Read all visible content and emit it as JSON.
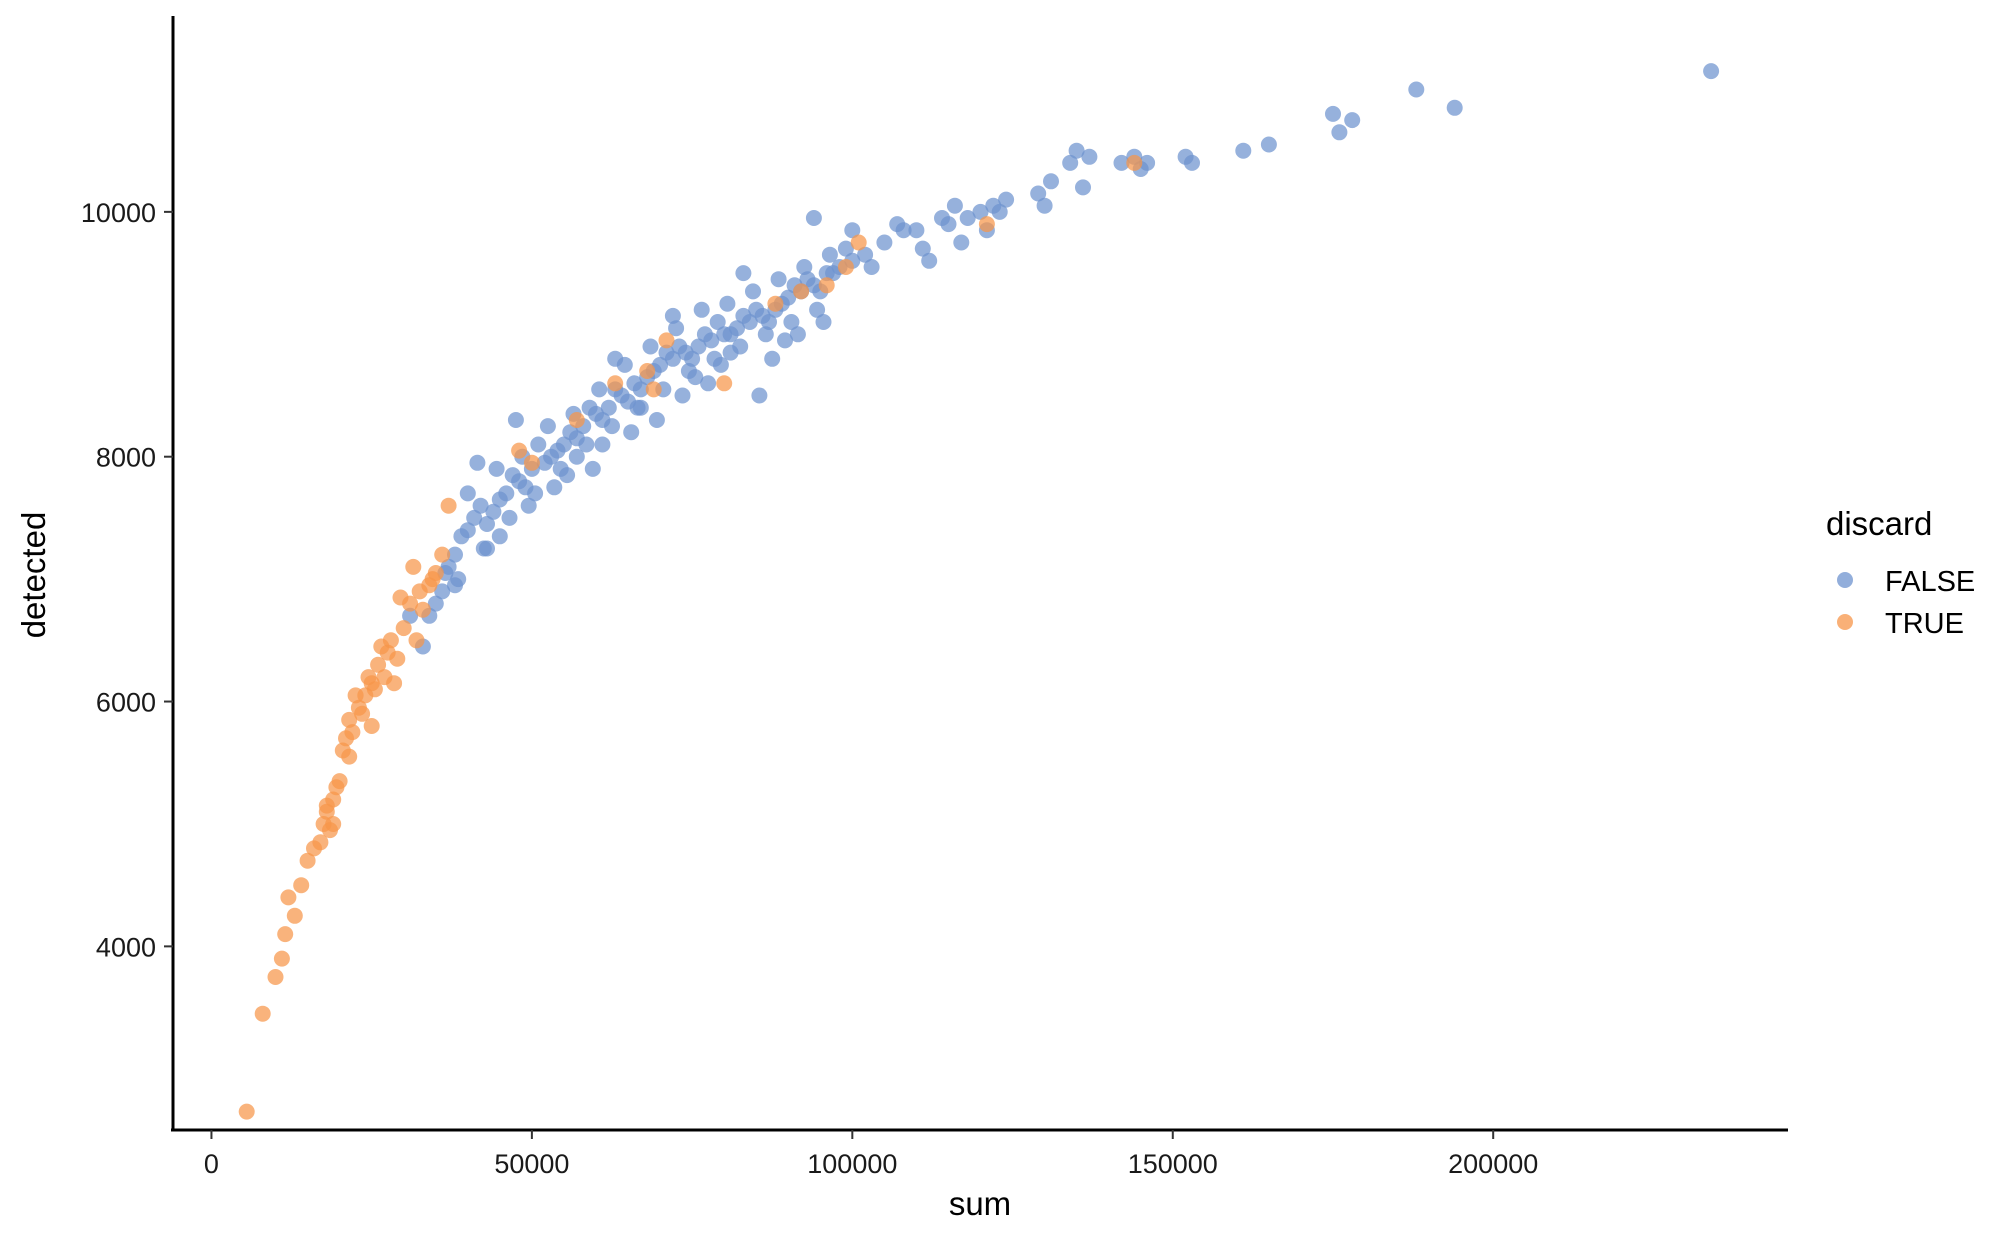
{
  "chart_data": {
    "type": "scatter",
    "xlabel": "sum",
    "ylabel": "detected",
    "xlim": [
      -6000,
      246000
    ],
    "ylim": [
      2500,
      11600
    ],
    "x_ticks": [
      0,
      50000,
      100000,
      150000,
      200000
    ],
    "y_ticks": [
      4000,
      6000,
      8000,
      10000
    ],
    "grid": false,
    "legend": {
      "title": "discard",
      "placement": "right",
      "entries": [
        {
          "label": "FALSE",
          "color": "#6e93cf"
        },
        {
          "label": "TRUE",
          "color": "#f7964a"
        }
      ]
    },
    "series": [
      {
        "name": "FALSE",
        "color": "#6e93cf",
        "points": [
          [
            36000,
            6900
          ],
          [
            38000,
            7200
          ],
          [
            40000,
            7400
          ],
          [
            42000,
            7600
          ],
          [
            44000,
            7550
          ],
          [
            46000,
            7700
          ],
          [
            48000,
            7800
          ],
          [
            50000,
            7900
          ],
          [
            52000,
            7950
          ],
          [
            54000,
            8050
          ],
          [
            56000,
            8200
          ],
          [
            58000,
            8250
          ],
          [
            60000,
            8350
          ],
          [
            62000,
            8400
          ],
          [
            64000,
            8500
          ],
          [
            66000,
            8600
          ],
          [
            68000,
            8650
          ],
          [
            70000,
            8750
          ],
          [
            72000,
            8800
          ],
          [
            74000,
            8850
          ],
          [
            76000,
            8900
          ],
          [
            78000,
            8950
          ],
          [
            80000,
            9000
          ],
          [
            82000,
            9050
          ],
          [
            84000,
            9100
          ],
          [
            86000,
            9150
          ],
          [
            88000,
            9200
          ],
          [
            90000,
            9300
          ],
          [
            92000,
            9350
          ],
          [
            94000,
            9400
          ],
          [
            96000,
            9500
          ],
          [
            98000,
            9550
          ],
          [
            100000,
            9600
          ],
          [
            102000,
            9650
          ],
          [
            37000,
            7100
          ],
          [
            41000,
            7500
          ],
          [
            45000,
            7650
          ],
          [
            49000,
            7750
          ],
          [
            53000,
            8000
          ],
          [
            57000,
            8150
          ],
          [
            61000,
            8300
          ],
          [
            65000,
            8450
          ],
          [
            69000,
            8700
          ],
          [
            73000,
            8900
          ],
          [
            77000,
            9000
          ],
          [
            81000,
            9000
          ],
          [
            85000,
            9200
          ],
          [
            89000,
            9250
          ],
          [
            93000,
            9450
          ],
          [
            97000,
            9500
          ],
          [
            39000,
            7350
          ],
          [
            43000,
            7450
          ],
          [
            47000,
            7850
          ],
          [
            51000,
            8100
          ],
          [
            55000,
            8100
          ],
          [
            59000,
            8400
          ],
          [
            63000,
            8550
          ],
          [
            67000,
            8550
          ],
          [
            71000,
            8850
          ],
          [
            75000,
            8800
          ],
          [
            79000,
            9100
          ],
          [
            83000,
            9150
          ],
          [
            87000,
            9100
          ],
          [
            91000,
            9400
          ],
          [
            95000,
            9350
          ],
          [
            99000,
            9700
          ],
          [
            35000,
            6800
          ],
          [
            38500,
            7000
          ],
          [
            42500,
            7250
          ],
          [
            46500,
            7500
          ],
          [
            50500,
            7700
          ],
          [
            54500,
            7900
          ],
          [
            58500,
            8100
          ],
          [
            62500,
            8250
          ],
          [
            66500,
            8400
          ],
          [
            70500,
            8550
          ],
          [
            74500,
            8700
          ],
          [
            78500,
            8800
          ],
          [
            82500,
            8900
          ],
          [
            86500,
            9000
          ],
          [
            90500,
            9100
          ],
          [
            94500,
            9200
          ],
          [
            40000,
            7700
          ],
          [
            44500,
            7900
          ],
          [
            48500,
            8000
          ],
          [
            52500,
            8250
          ],
          [
            56500,
            8350
          ],
          [
            60500,
            8550
          ],
          [
            64500,
            8750
          ],
          [
            68500,
            8900
          ],
          [
            72500,
            9050
          ],
          [
            76500,
            9200
          ],
          [
            80500,
            9250
          ],
          [
            84500,
            9350
          ],
          [
            88500,
            9450
          ],
          [
            92500,
            9550
          ],
          [
            96500,
            9650
          ],
          [
            33000,
            6450
          ],
          [
            34000,
            6700
          ],
          [
            41500,
            7950
          ],
          [
            47500,
            8300
          ],
          [
            63000,
            8800
          ],
          [
            72000,
            9150
          ],
          [
            83000,
            9500
          ],
          [
            94000,
            9950
          ],
          [
            57000,
            8000
          ],
          [
            61000,
            8100
          ],
          [
            67000,
            8400
          ],
          [
            75500,
            8650
          ],
          [
            79500,
            8750
          ],
          [
            81000,
            8850
          ],
          [
            89500,
            8950
          ],
          [
            85500,
            8500
          ],
          [
            53500,
            7750
          ],
          [
            59500,
            7900
          ],
          [
            65500,
            8200
          ],
          [
            69500,
            8300
          ],
          [
            73500,
            8500
          ],
          [
            77500,
            8600
          ],
          [
            87500,
            8800
          ],
          [
            91500,
            9000
          ],
          [
            95500,
            9100
          ],
          [
            45000,
            7350
          ],
          [
            43000,
            7250
          ],
          [
            49500,
            7600
          ],
          [
            55500,
            7850
          ],
          [
            38000,
            6950
          ],
          [
            36500,
            7050
          ],
          [
            31000,
            6700
          ],
          [
            105000,
            9750
          ],
          [
            107000,
            9900
          ],
          [
            110000,
            9850
          ],
          [
            112000,
            9600
          ],
          [
            114000,
            9950
          ],
          [
            116000,
            10050
          ],
          [
            118000,
            9950
          ],
          [
            120000,
            10000
          ],
          [
            122000,
            10050
          ],
          [
            124000,
            10100
          ],
          [
            129000,
            10150
          ],
          [
            130000,
            10050
          ],
          [
            131000,
            10250
          ],
          [
            134000,
            10400
          ],
          [
            136000,
            10200
          ],
          [
            137000,
            10450
          ],
          [
            142000,
            10400
          ],
          [
            145000,
            10350
          ],
          [
            146000,
            10400
          ],
          [
            152000,
            10450
          ],
          [
            153000,
            10400
          ],
          [
            161000,
            10500
          ],
          [
            165000,
            10550
          ],
          [
            175000,
            10800
          ],
          [
            176000,
            10650
          ],
          [
            178000,
            10750
          ],
          [
            188000,
            11000
          ],
          [
            194000,
            10850
          ],
          [
            234000,
            11150
          ],
          [
            100000,
            9850
          ],
          [
            103000,
            9550
          ],
          [
            108000,
            9850
          ],
          [
            111000,
            9700
          ],
          [
            115000,
            9900
          ],
          [
            117000,
            9750
          ],
          [
            121000,
            9850
          ],
          [
            123000,
            10000
          ],
          [
            135000,
            10500
          ],
          [
            144000,
            10450
          ]
        ]
      },
      {
        "name": "TRUE",
        "color": "#f7964a",
        "points": [
          [
            5500,
            2650
          ],
          [
            8000,
            3450
          ],
          [
            10000,
            3750
          ],
          [
            11000,
            3900
          ],
          [
            11500,
            4100
          ],
          [
            12000,
            4400
          ],
          [
            13000,
            4250
          ],
          [
            14000,
            4500
          ],
          [
            15000,
            4700
          ],
          [
            16000,
            4800
          ],
          [
            17000,
            4850
          ],
          [
            17500,
            5000
          ],
          [
            18000,
            5150
          ],
          [
            18500,
            4950
          ],
          [
            19000,
            5200
          ],
          [
            19500,
            5300
          ],
          [
            20000,
            5350
          ],
          [
            20500,
            5600
          ],
          [
            21000,
            5700
          ],
          [
            21500,
            5850
          ],
          [
            22000,
            5750
          ],
          [
            23000,
            5950
          ],
          [
            24000,
            6050
          ],
          [
            25000,
            5800
          ],
          [
            25500,
            6100
          ],
          [
            26000,
            6300
          ],
          [
            27000,
            6200
          ],
          [
            27500,
            6400
          ],
          [
            28000,
            6500
          ],
          [
            28500,
            6150
          ],
          [
            29000,
            6350
          ],
          [
            30000,
            6600
          ],
          [
            31000,
            6800
          ],
          [
            32000,
            6500
          ],
          [
            33000,
            6750
          ],
          [
            34000,
            6950
          ],
          [
            35000,
            7050
          ],
          [
            36000,
            7200
          ],
          [
            37000,
            7600
          ],
          [
            19000,
            5000
          ],
          [
            22500,
            6050
          ],
          [
            24500,
            6200
          ],
          [
            26500,
            6450
          ],
          [
            29500,
            6850
          ],
          [
            31500,
            7100
          ],
          [
            32500,
            6900
          ],
          [
            34500,
            7000
          ],
          [
            25000,
            6150
          ],
          [
            23500,
            5900
          ],
          [
            21500,
            5550
          ],
          [
            18000,
            5100
          ],
          [
            48000,
            8050
          ],
          [
            50000,
            7950
          ],
          [
            57000,
            8300
          ],
          [
            63000,
            8600
          ],
          [
            68000,
            8700
          ],
          [
            69000,
            8550
          ],
          [
            71000,
            8950
          ],
          [
            80000,
            8600
          ],
          [
            96000,
            9400
          ],
          [
            99000,
            9550
          ],
          [
            101000,
            9750
          ],
          [
            121000,
            9900
          ],
          [
            144000,
            10400
          ],
          [
            88000,
            9250
          ],
          [
            92000,
            9350
          ]
        ]
      }
    ]
  }
}
